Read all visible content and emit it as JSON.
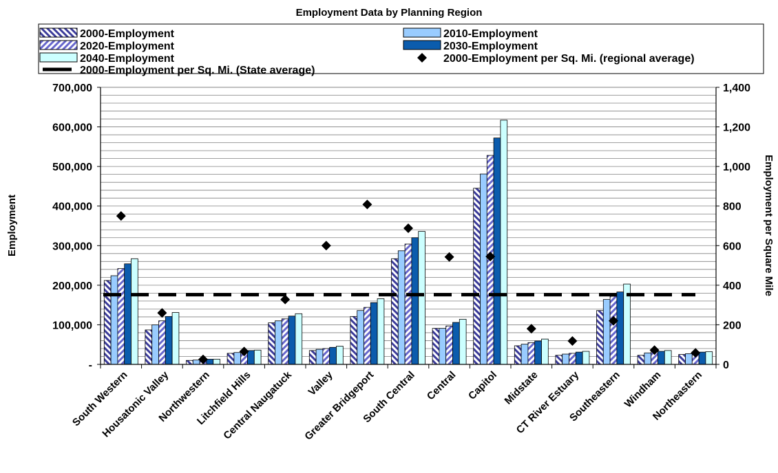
{
  "chart_data": {
    "type": "bar",
    "title": "Employment Data by Planning Region",
    "ylabel": "Employment",
    "y2label": "Employment per Square Mile",
    "ylim": [
      0,
      700000
    ],
    "y2lim": [
      0,
      1400
    ],
    "yticks": [
      "-",
      "100,000",
      "200,000",
      "300,000",
      "400,000",
      "500,000",
      "600,000",
      "700,000"
    ],
    "yticks_values": [
      0,
      100000,
      200000,
      300000,
      400000,
      500000,
      600000,
      700000
    ],
    "y2ticks": [
      "0",
      "200",
      "400",
      "600",
      "800",
      "1,000",
      "1,200",
      "1,400"
    ],
    "y2ticks_values": [
      0,
      200,
      400,
      600,
      800,
      1000,
      1200,
      1400
    ],
    "grid": true,
    "legend_position": "top",
    "categories": [
      "South Western",
      "Housatonic Valley",
      "Northwestern",
      "Litchfield Hills",
      "Central Naugatuck",
      "Valley",
      "Greater Bridgeport",
      "South Central",
      "Central",
      "Capitol",
      "Midstate",
      "CT River Estuary",
      "Southeastern",
      "Windham",
      "Northeastern"
    ],
    "series": [
      {
        "name": "2000-Employment",
        "axis": "left",
        "color": "#3b3b9a",
        "values": [
          212000,
          87000,
          10000,
          28000,
          105000,
          35000,
          121000,
          267000,
          91000,
          445000,
          47000,
          23000,
          136000,
          23000,
          25000
        ]
      },
      {
        "name": "2010-Employment",
        "axis": "left",
        "color": "#99ccff",
        "values": [
          224000,
          100000,
          11000,
          30000,
          110000,
          38000,
          136000,
          287000,
          91000,
          481000,
          51000,
          26000,
          164000,
          29000,
          27000
        ]
      },
      {
        "name": "2020-Employment",
        "axis": "left",
        "color": "#6666cc",
        "values": [
          242000,
          110000,
          12000,
          33000,
          115000,
          40000,
          144000,
          304000,
          97000,
          528000,
          55000,
          28000,
          172000,
          36000,
          30000
        ]
      },
      {
        "name": "2030-Employment",
        "axis": "left",
        "color": "#0b5cad",
        "values": [
          254000,
          121000,
          13000,
          35000,
          122000,
          43000,
          156000,
          320000,
          106000,
          572000,
          59000,
          31000,
          183000,
          33000,
          31000
        ]
      },
      {
        "name": "2040-Employment",
        "axis": "left",
        "color": "#ccffff",
        "values": [
          267000,
          131000,
          13000,
          36000,
          128000,
          46000,
          166000,
          336000,
          114000,
          617000,
          64000,
          33000,
          203000,
          35000,
          32000
        ]
      },
      {
        "name": "2000-Employment per Sq. Mi. (regional average)",
        "axis": "right",
        "type": "scatter",
        "values": [
          750,
          260,
          25,
          65,
          328,
          600,
          808,
          688,
          543,
          545,
          180,
          118,
          220,
          72,
          58
        ]
      }
    ],
    "state_average": {
      "name": "2000-Employment per Sq. Mi. (State average)",
      "axis": "right",
      "value": 352
    }
  }
}
